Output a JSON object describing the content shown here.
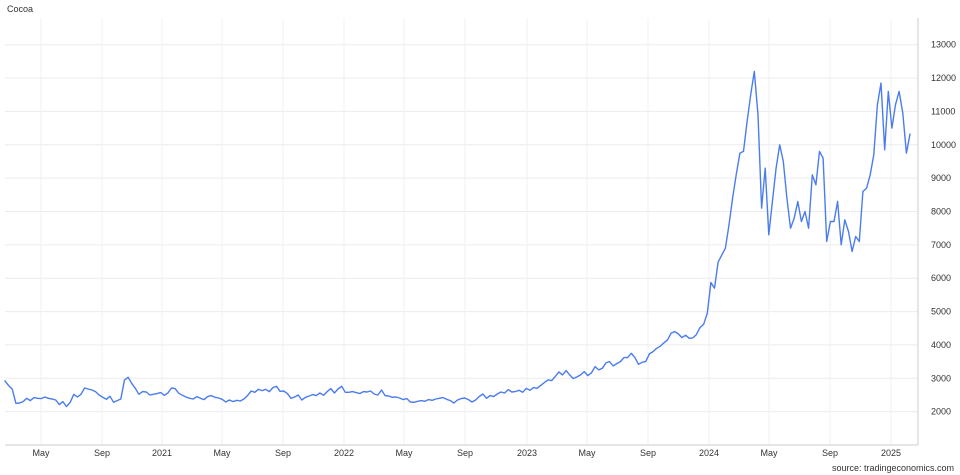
{
  "chart_data": {
    "type": "line",
    "title": "Cocoa",
    "source": "source: tradingeconomics.com",
    "xlabel": "",
    "ylabel": "",
    "ylim": [
      1000,
      13800
    ],
    "y_ticks": [
      2000,
      3000,
      4000,
      5000,
      6000,
      7000,
      8000,
      9000,
      10000,
      11000,
      12000,
      13000
    ],
    "x_ticks": [
      "May",
      "Sep",
      "2021",
      "May",
      "Sep",
      "2022",
      "May",
      "Sep",
      "2023",
      "May",
      "Sep",
      "2024",
      "May",
      "Sep",
      "2025"
    ],
    "grid": true,
    "series": [
      {
        "color": "#4a7cf0",
        "values": [
          2920,
          2780,
          2680,
          2250,
          2260,
          2300,
          2400,
          2330,
          2420,
          2400,
          2390,
          2440,
          2400,
          2380,
          2350,
          2210,
          2300,
          2150,
          2280,
          2520,
          2440,
          2520,
          2710,
          2680,
          2650,
          2600,
          2500,
          2430,
          2370,
          2460,
          2280,
          2330,
          2380,
          2950,
          3030,
          2850,
          2700,
          2520,
          2600,
          2590,
          2500,
          2520,
          2540,
          2570,
          2490,
          2560,
          2710,
          2690,
          2550,
          2490,
          2440,
          2400,
          2380,
          2450,
          2400,
          2360,
          2450,
          2480,
          2430,
          2410,
          2370,
          2290,
          2350,
          2300,
          2340,
          2320,
          2380,
          2480,
          2620,
          2580,
          2670,
          2630,
          2670,
          2600,
          2720,
          2760,
          2610,
          2620,
          2540,
          2400,
          2440,
          2500,
          2350,
          2430,
          2470,
          2510,
          2480,
          2560,
          2490,
          2600,
          2690,
          2560,
          2680,
          2760,
          2580,
          2580,
          2600,
          2570,
          2540,
          2600,
          2590,
          2620,
          2530,
          2500,
          2650,
          2480,
          2470,
          2430,
          2440,
          2410,
          2360,
          2390,
          2290,
          2280,
          2310,
          2330,
          2310,
          2360,
          2340,
          2380,
          2400,
          2420,
          2370,
          2330,
          2260,
          2350,
          2390,
          2410,
          2360,
          2290,
          2350,
          2450,
          2530,
          2400,
          2480,
          2450,
          2530,
          2590,
          2560,
          2660,
          2590,
          2600,
          2640,
          2580,
          2700,
          2640,
          2720,
          2700,
          2790,
          2870,
          2950,
          2930,
          3050,
          3190,
          3100,
          3230,
          3100,
          2990,
          3040,
          3100,
          3200,
          3080,
          3160,
          3350,
          3250,
          3300,
          3460,
          3500,
          3370,
          3440,
          3500,
          3620,
          3620,
          3750,
          3620,
          3420,
          3480,
          3500,
          3730,
          3800,
          3900,
          3960,
          4060,
          4150,
          4350,
          4400,
          4330,
          4220,
          4290,
          4200,
          4210,
          4310,
          4520,
          4620,
          4950,
          5870,
          5700,
          6480,
          6700,
          6900,
          7600,
          8400,
          9100,
          9750,
          9800,
          10700,
          11500,
          12200,
          10900,
          8100,
          9300,
          7300,
          8300,
          9300,
          10000,
          9500,
          8400,
          7500,
          7800,
          8300,
          7700,
          8000,
          7500,
          9100,
          8800,
          9800,
          9600,
          7100,
          7700,
          7700,
          8300,
          7000,
          7750,
          7400,
          6800,
          7250,
          7100,
          8600,
          8700,
          9100,
          9700,
          11200,
          11850,
          9850,
          11600,
          10500,
          11200,
          11600,
          10950,
          9750,
          10320
        ]
      }
    ]
  }
}
